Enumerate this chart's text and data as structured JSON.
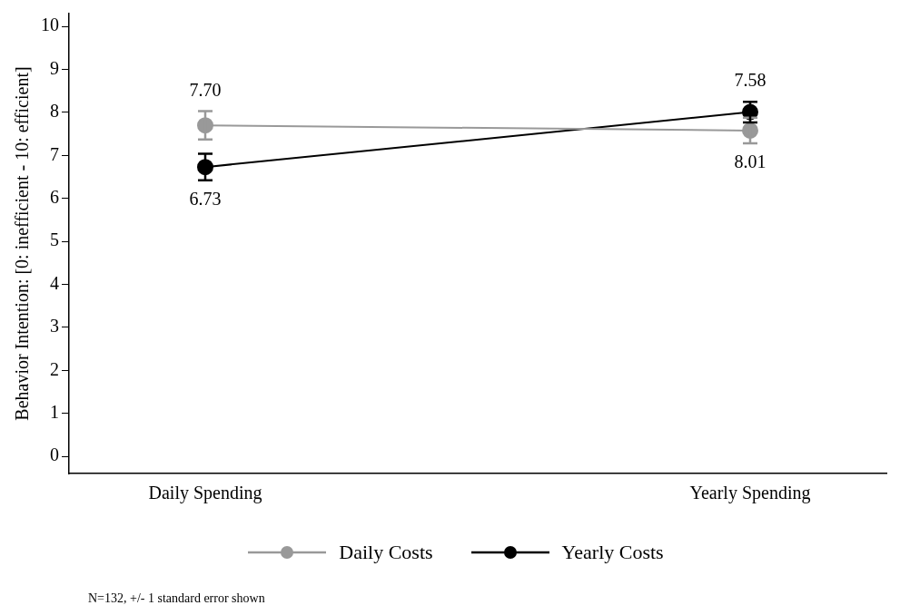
{
  "chart_data": {
    "type": "line",
    "ylabel": "Behavior Intention: [0: inefficient - 10: efficient]",
    "categories": [
      "Daily Spending",
      "Yearly Spending"
    ],
    "series": [
      {
        "name": "Daily Costs",
        "color": "#999999",
        "values": [
          7.7,
          7.58
        ],
        "errors": [
          0.33,
          0.3
        ],
        "value_labels": [
          "7.70",
          "7.58"
        ]
      },
      {
        "name": "Yearly Costs",
        "color": "#000000",
        "values": [
          6.73,
          8.01
        ],
        "errors": [
          0.31,
          0.24
        ],
        "value_labels": [
          "6.73",
          "8.01"
        ]
      }
    ],
    "ylim": [
      -0.4,
      10.3
    ],
    "yticks": [
      0,
      1,
      2,
      3,
      4,
      5,
      6,
      7,
      8,
      9,
      10
    ],
    "grid": false,
    "legend": "bottom",
    "marker": "circle",
    "line_style": "solid",
    "annotations": [
      "N=132, +/- 1 standard error shown"
    ]
  }
}
